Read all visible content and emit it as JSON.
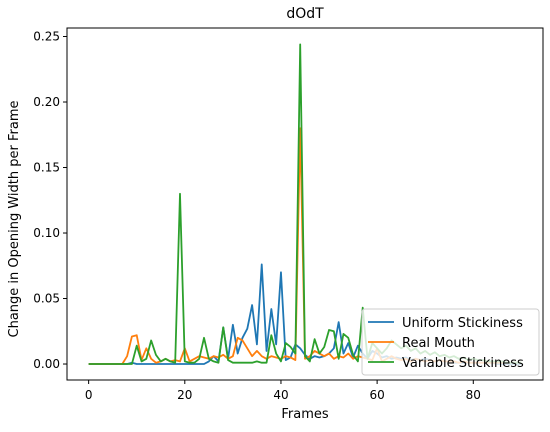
{
  "chart_data": {
    "type": "line",
    "title": "dOdT",
    "xlabel": "Frames",
    "ylabel": "Change in Opening Width per Frame",
    "xlim": [
      -4.5,
      94.5
    ],
    "ylim": [
      -0.0122,
      0.2565
    ],
    "xticks": [
      0,
      20,
      40,
      60,
      80
    ],
    "yticks": [
      0.0,
      0.05,
      0.1,
      0.15,
      0.2,
      0.25
    ],
    "xtick_labels": [
      "0",
      "20",
      "40",
      "60",
      "80"
    ],
    "ytick_labels": [
      "0.00",
      "0.05",
      "0.10",
      "0.15",
      "0.20",
      "0.25"
    ],
    "legend_position": "lower-right",
    "grid": false,
    "series": [
      {
        "name": "Uniform Stickiness",
        "color": "#1f77b4",
        "x": [
          0,
          1,
          2,
          3,
          4,
          5,
          6,
          7,
          8,
          9,
          10,
          11,
          12,
          13,
          14,
          15,
          16,
          17,
          18,
          19,
          20,
          21,
          22,
          23,
          24,
          25,
          26,
          27,
          28,
          29,
          30,
          31,
          32,
          33,
          34,
          35,
          36,
          37,
          38,
          39,
          40,
          41,
          42,
          43,
          44,
          45,
          46,
          47,
          48,
          49,
          50,
          51,
          52,
          53,
          54,
          55,
          56,
          57,
          58,
          59,
          60,
          61,
          62,
          63,
          64,
          65,
          66,
          67,
          68,
          69,
          70,
          71,
          72,
          73,
          74,
          75,
          76,
          77,
          78,
          79,
          80,
          81,
          82,
          83,
          84,
          85,
          86,
          87,
          88,
          89,
          90
        ],
        "values": [
          0,
          0,
          0,
          0,
          0,
          0,
          0,
          0,
          0,
          0.001,
          0,
          0,
          0,
          0,
          0,
          0,
          0,
          0,
          0,
          0,
          0,
          0,
          0,
          0,
          0,
          0.002,
          0.006,
          0.002,
          0.028,
          0.004,
          0.03,
          0.008,
          0.02,
          0.027,
          0.045,
          0.015,
          0.076,
          0.01,
          0.042,
          0.015,
          0.07,
          0.003,
          0.005,
          0.015,
          0.012,
          0.007,
          0.004,
          0.006,
          0.005,
          0.006,
          0.008,
          0.012,
          0.032,
          0.008,
          0.016,
          0.005,
          0.014,
          0.008,
          0.004,
          0.01,
          0.008,
          0.005,
          0.006,
          0.004,
          0.005,
          0.004,
          0.005,
          0.003,
          0.004,
          0.003,
          0.004,
          0.003,
          0.002,
          0.003,
          0.002,
          0.002,
          0.001,
          0.001,
          0.001,
          0.001,
          0.001,
          0.001,
          0.001,
          0.001,
          0.001,
          0,
          0,
          0,
          0,
          0,
          0
        ]
      },
      {
        "name": "Real Mouth",
        "color": "#ff7f0e",
        "x": [
          0,
          1,
          2,
          3,
          4,
          5,
          6,
          7,
          8,
          9,
          10,
          11,
          12,
          13,
          14,
          15,
          16,
          17,
          18,
          19,
          20,
          21,
          22,
          23,
          24,
          25,
          26,
          27,
          28,
          29,
          30,
          31,
          32,
          33,
          34,
          35,
          36,
          37,
          38,
          39,
          40,
          41,
          42,
          43,
          44,
          45,
          46,
          47,
          48,
          49,
          50,
          51,
          52,
          53,
          54,
          55,
          56,
          57,
          58,
          59,
          60,
          61,
          62,
          63,
          64,
          65,
          66,
          67,
          68,
          69,
          70,
          71,
          72,
          73,
          74,
          75,
          76,
          77,
          78,
          79,
          80,
          81,
          82,
          83,
          84,
          85,
          86,
          87,
          88,
          89,
          90
        ],
        "values": [
          0,
          0,
          0,
          0,
          0,
          0,
          0,
          0,
          0.006,
          0.021,
          0.022,
          0.003,
          0.012,
          0.004,
          0.001,
          0.002,
          0.004,
          0.002,
          0.003,
          0.002,
          0.012,
          0.002,
          0.004,
          0.006,
          0.005,
          0.004,
          0.006,
          0.005,
          0.007,
          0.004,
          0.006,
          0.02,
          0.018,
          0.012,
          0.006,
          0.01,
          0.006,
          0.004,
          0.006,
          0.005,
          0.004,
          0.006,
          0.005,
          0.003,
          0.18,
          0.004,
          0.006,
          0.01,
          0.008,
          0.006,
          0.008,
          0.004,
          0.006,
          0.005,
          0.008,
          0.004,
          0.006,
          0.005,
          0.004,
          0.003,
          0.012,
          0.002,
          0.004,
          0.006,
          0.004,
          0.003,
          0.004,
          0.002,
          0.004,
          0.003,
          0.002,
          0.003,
          0.002,
          0.003,
          0.002,
          0.002,
          0.002,
          0.001,
          0.002,
          0.001,
          0.001,
          0.001,
          0.001,
          0.001,
          0.001,
          0.001,
          0.001,
          0.001,
          0.001,
          0.001,
          0.001
        ]
      },
      {
        "name": "Variable Stickiness",
        "color": "#2ca02c",
        "x": [
          0,
          1,
          2,
          3,
          4,
          5,
          6,
          7,
          8,
          9,
          10,
          11,
          12,
          13,
          14,
          15,
          16,
          17,
          18,
          19,
          20,
          21,
          22,
          23,
          24,
          25,
          26,
          27,
          28,
          29,
          30,
          31,
          32,
          33,
          34,
          35,
          36,
          37,
          38,
          39,
          40,
          41,
          42,
          43,
          44,
          45,
          46,
          47,
          48,
          49,
          50,
          51,
          52,
          53,
          54,
          55,
          56,
          57,
          58,
          59,
          60,
          61,
          62,
          63,
          64,
          65,
          66,
          67,
          68,
          69,
          70,
          71,
          72,
          73,
          74,
          75,
          76,
          77,
          78,
          79,
          80,
          81,
          82,
          83,
          84,
          85,
          86,
          87,
          88,
          89,
          90
        ],
        "values": [
          0,
          0,
          0,
          0,
          0,
          0,
          0,
          0,
          0,
          0,
          0.014,
          0.002,
          0.004,
          0.018,
          0.007,
          0.002,
          0.004,
          0.002,
          0.001,
          0.13,
          0.002,
          0.001,
          0.001,
          0.004,
          0.02,
          0.004,
          0.002,
          0.001,
          0.028,
          0.003,
          0.001,
          0.001,
          0.001,
          0.001,
          0.001,
          0.002,
          0.001,
          0.001,
          0.022,
          0.008,
          0.002,
          0.016,
          0.013,
          0.008,
          0.244,
          0.006,
          0.002,
          0.019,
          0.008,
          0.013,
          0.026,
          0.025,
          0.004,
          0.023,
          0.02,
          0.007,
          0.002,
          0.043,
          0.004,
          0.016,
          0.012,
          0.008,
          0.012,
          0.018,
          0.015,
          0.012,
          0.014,
          0.01,
          0.012,
          0.008,
          0.01,
          0.007,
          0.009,
          0.006,
          0.007,
          0.005,
          0.006,
          0.004,
          0.005,
          0.003,
          0.004,
          0.003,
          0.003,
          0.002,
          0.002,
          0.002,
          0.002,
          0.001,
          0.001,
          0.001,
          0.001
        ]
      }
    ]
  }
}
